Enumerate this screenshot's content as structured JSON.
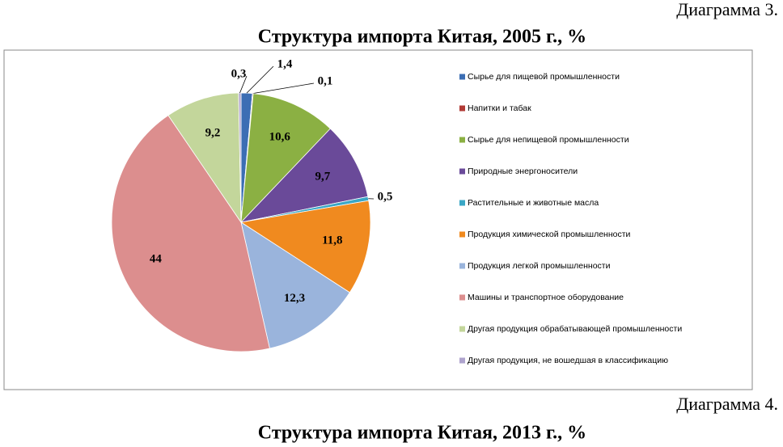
{
  "caption": "Диаграмма 3.",
  "chart_data": {
    "type": "pie",
    "title": "Структура импорта Китая, 2005 г., %",
    "categories": [
      "Сырье для пищевой промышленности",
      "Напитки и табак",
      "Сырье для непищевой промышленности",
      "Природные энергоносители",
      "Растительные и животные масла",
      "Продукция химической промышленности",
      "Продукция легкой промышленности",
      "Машины и транспортное оборудование",
      "Другая продукция обрабатывающей промышленности",
      "Другая продукция, не вошедшая в классификацию"
    ],
    "values": [
      1.4,
      0.1,
      10.6,
      9.7,
      0.5,
      11.8,
      12.3,
      44,
      9.2,
      0.3
    ],
    "value_labels": [
      "1,4",
      "0,1",
      "10,6",
      "9,7",
      "0,5",
      "11,8",
      "12,3",
      "44",
      "9,2",
      "0,3"
    ],
    "colors": [
      "#3c6eb4",
      "#b13a35",
      "#8bb043",
      "#6a4a99",
      "#3aa7c6",
      "#f08a1f",
      "#9ab4dc",
      "#dc8e8e",
      "#c3d69b",
      "#aea3cd"
    ],
    "legend": "right"
  },
  "next_caption": "Диаграмма 4.",
  "next_title": "Структура импорта Китая, 2013 г., %"
}
